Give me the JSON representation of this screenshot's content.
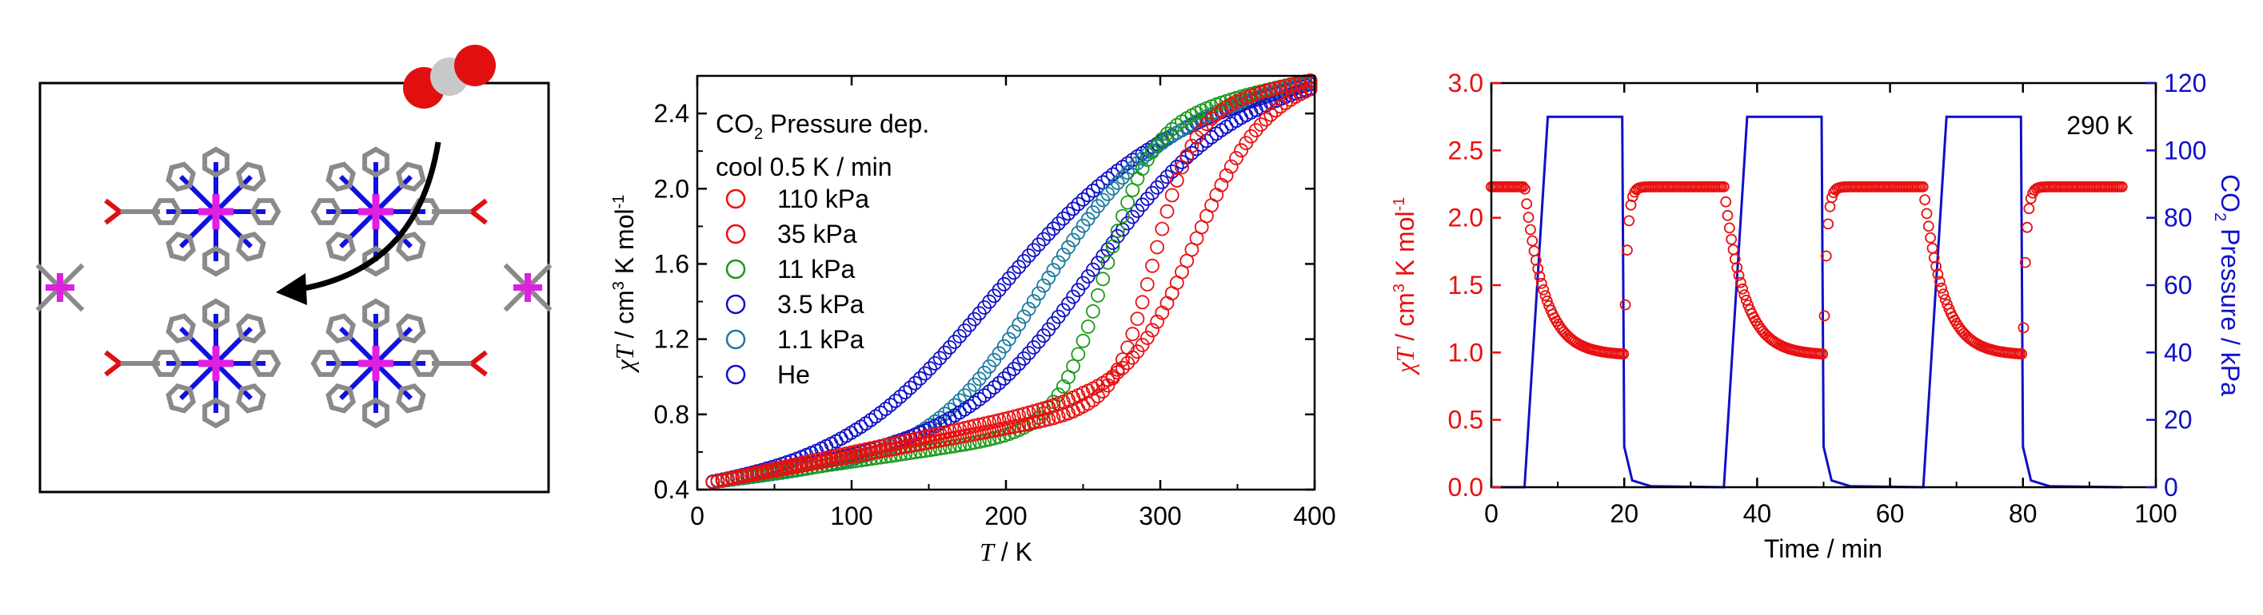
{
  "panel_a": {
    "molecule_colors": {
      "carbon": "#8a8a8a",
      "nitrogen": "#1010e0",
      "metal": "#e020e0",
      "oxygen": "#e01010"
    },
    "co2_colors": {
      "oxygen": "#e01010",
      "carbon": "#c8c8c8"
    }
  },
  "chart_data": [
    {
      "type": "scatter",
      "ylabel_var": "χT",
      "ylabel_unit": " / cm",
      "ylabel_sup1": "3",
      "ylabel_mid": " K mol",
      "ylabel_sup2": "-1",
      "xlabel_var": "T",
      "xlabel_unit": " / K",
      "xlim": [
        0,
        400
      ],
      "ylim": [
        0.4,
        2.6
      ],
      "xticks": [
        0,
        100,
        200,
        300,
        400
      ],
      "yticks": [
        0.4,
        0.8,
        1.2,
        1.6,
        2.0,
        2.4
      ],
      "ytick_labels": [
        "0.4",
        "0.8",
        "1.2",
        "1.6",
        "2.0",
        "2.4"
      ],
      "legend": {
        "title_line1_pre": "CO",
        "title_line1_sub": "2",
        "title_line1_post": " Pressure dep.",
        "title_line2": "cool 0.5 K / min",
        "placement": "top-left"
      },
      "series": [
        {
          "name": "110 kPa",
          "color": "#e81010",
          "tmid": 320,
          "width": 22,
          "low": 0.86,
          "vertical_end": 0
        },
        {
          "name": "35 kPa",
          "color": "#e81010",
          "tmid": 295,
          "width": 13,
          "low": 0.8,
          "vertical_end": 0
        },
        {
          "name": "11 kPa",
          "color": "#1a9a1a",
          "tmid": 262,
          "width": 15,
          "low": 0.73,
          "vertical_end": 0
        },
        {
          "name": "3.5 kPa",
          "color": "#1010c8",
          "tmid": 250,
          "width": 40,
          "low": 0.78,
          "vertical_end": 0
        },
        {
          "name": "1.1 kPa",
          "color": "#1a7aa0",
          "tmid": 215,
          "width": 35,
          "low": 0.68,
          "vertical_end": 0
        },
        {
          "name": "He",
          "color": "#1010c8",
          "tmid": 175,
          "width": 50,
          "low": 0.72,
          "vertical_end": 0
        }
      ]
    },
    {
      "type": "line",
      "xlabel": "Time / min",
      "ylabel_left_var": "χT",
      "ylabel_left_unit": " / cm",
      "ylabel_left_sup1": "3",
      "ylabel_left_mid": " K mol",
      "ylabel_left_sup2": "-1",
      "ylabel_right_pre": "CO",
      "ylabel_right_sub": "2",
      "ylabel_right_post": " Pressure / kPa",
      "annotation": "290 K",
      "xlim": [
        0,
        100
      ],
      "ylim_left": [
        0,
        3.0
      ],
      "ylim_right": [
        0,
        120
      ],
      "xticks": [
        0,
        20,
        40,
        60,
        80,
        100
      ],
      "yticks_left": [
        0.0,
        0.5,
        1.0,
        1.5,
        2.0,
        2.5,
        3.0
      ],
      "yticks_left_labels": [
        "0.0",
        "0.5",
        "1.0",
        "1.5",
        "2.0",
        "2.5",
        "3.0"
      ],
      "yticks_right": [
        0,
        20,
        40,
        60,
        80,
        100,
        120
      ],
      "left_color": "#e81010",
      "right_color": "#1010c8",
      "chiT_high": 2.23,
      "chiT_low": 0.98,
      "pressure_high": 110,
      "cycles": [
        {
          "gas_on": 5,
          "gas_off": 20
        },
        {
          "gas_on": 35,
          "gas_off": 50
        },
        {
          "gas_on": 65,
          "gas_off": 80
        }
      ],
      "x_end": 95
    }
  ]
}
